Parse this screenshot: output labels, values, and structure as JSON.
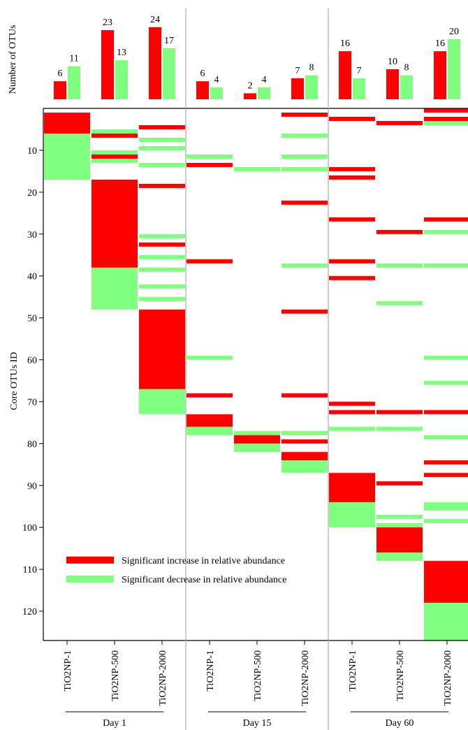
{
  "chart_data": [
    {
      "type": "bar",
      "ylabel": "Number of OTUs",
      "conditions": [
        "TiO2NP-1",
        "TiO2NP-500",
        "TiO2NP-2000",
        "TiO2NP-1",
        "TiO2NP-500",
        "TiO2NP-2000",
        "TiO2NP-1",
        "TiO2NP-500",
        "TiO2NP-2000"
      ],
      "days": [
        "Day 1",
        "Day 15",
        "Day 60"
      ],
      "series": [
        {
          "name": "Significant increase in relative abundance",
          "color": "#ff0000",
          "values": [
            6,
            23,
            24,
            6,
            2,
            7,
            16,
            10,
            16
          ]
        },
        {
          "name": "Significant decrease in relative abundance",
          "color": "#80ff80",
          "values": [
            11,
            13,
            17,
            4,
            4,
            8,
            7,
            8,
            20
          ]
        }
      ]
    },
    {
      "type": "heatmap",
      "ylabel": "Core OTUs ID",
      "yticks": [
        10,
        20,
        30,
        40,
        50,
        60,
        70,
        80,
        90,
        100,
        110,
        120
      ],
      "ylim": [
        1,
        127
      ],
      "conditions": [
        "TiO2NP-1",
        "TiO2NP-500",
        "TiO2NP-2000",
        "TiO2NP-1",
        "TiO2NP-500",
        "TiO2NP-2000",
        "TiO2NP-1",
        "TiO2NP-500",
        "TiO2NP-2000"
      ],
      "days": [
        "Day 1",
        "Day 15",
        "Day 60"
      ],
      "legend": [
        {
          "label": "Significant increase in relative abundance",
          "color": "#ff0000"
        },
        {
          "label": "Significant decrease in relative abundance",
          "color": "#80ff80"
        }
      ],
      "columns": [
        {
          "increase": [
            [
              1,
              6
            ]
          ],
          "decrease": [
            [
              6,
              17
            ]
          ]
        },
        {
          "increase": [
            [
              6,
              6
            ],
            [
              11,
              11
            ],
            [
              17,
              38
            ]
          ],
          "decrease": [
            [
              5,
              5
            ],
            [
              10,
              10
            ],
            [
              12,
              12
            ],
            [
              38,
              48
            ]
          ]
        },
        {
          "increase": [
            [
              4,
              4
            ],
            [
              18,
              19
            ],
            [
              32,
              33
            ],
            [
              48,
              67
            ]
          ],
          "decrease": [
            [
              7,
              7
            ],
            [
              9,
              10
            ],
            [
              13,
              14
            ],
            [
              30,
              30
            ],
            [
              35,
              35
            ],
            [
              38,
              38
            ],
            [
              42,
              43
            ],
            [
              45,
              45
            ],
            [
              67,
              73
            ]
          ]
        },
        {
          "increase": [
            [
              13,
              13
            ],
            [
              36,
              36
            ],
            [
              68,
              68
            ],
            [
              73,
              76
            ]
          ],
          "decrease": [
            [
              11,
              11
            ],
            [
              59,
              59
            ],
            [
              76,
              78
            ]
          ]
        },
        {
          "increase": [
            [
              78,
              80
            ]
          ],
          "decrease": [
            [
              14,
              14
            ],
            [
              77,
              77
            ],
            [
              80,
              82
            ]
          ]
        },
        {
          "increase": [
            [
              1,
              1
            ],
            [
              22,
              22
            ],
            [
              48,
              48
            ],
            [
              68,
              68
            ],
            [
              79,
              79
            ],
            [
              82,
              84
            ]
          ],
          "decrease": [
            [
              6,
              6
            ],
            [
              11,
              11
            ],
            [
              14,
              14
            ],
            [
              37,
              37
            ],
            [
              77,
              77
            ],
            [
              84,
              87
            ]
          ]
        },
        {
          "increase": [
            [
              2,
              3
            ],
            [
              14,
              14
            ],
            [
              16,
              16
            ],
            [
              26,
              26
            ],
            [
              36,
              36
            ],
            [
              40,
              40
            ],
            [
              70,
              70
            ],
            [
              72,
              72
            ],
            [
              87,
              94
            ]
          ],
          "decrease": [
            [
              76,
              76
            ],
            [
              94,
              100
            ]
          ]
        },
        {
          "increase": [
            [
              3,
              3
            ],
            [
              29,
              29
            ],
            [
              72,
              72
            ],
            [
              89,
              89
            ],
            [
              100,
              106
            ]
          ],
          "decrease": [
            [
              37,
              37
            ],
            [
              46,
              46
            ],
            [
              76,
              76
            ],
            [
              97,
              97
            ],
            [
              99,
              99
            ],
            [
              106,
              108
            ]
          ]
        },
        {
          "increase": [
            [
              0,
              0
            ],
            [
              2,
              2
            ],
            [
              26,
              26
            ],
            [
              72,
              72
            ],
            [
              84,
              84
            ],
            [
              87,
              87
            ],
            [
              108,
              118
            ]
          ],
          "decrease": [
            [
              3,
              3
            ],
            [
              29,
              29
            ],
            [
              37,
              37
            ],
            [
              59,
              59
            ],
            [
              65,
              65
            ],
            [
              78,
              79
            ],
            [
              94,
              96
            ],
            [
              98,
              98
            ],
            [
              118,
              127
            ]
          ]
        }
      ]
    }
  ]
}
